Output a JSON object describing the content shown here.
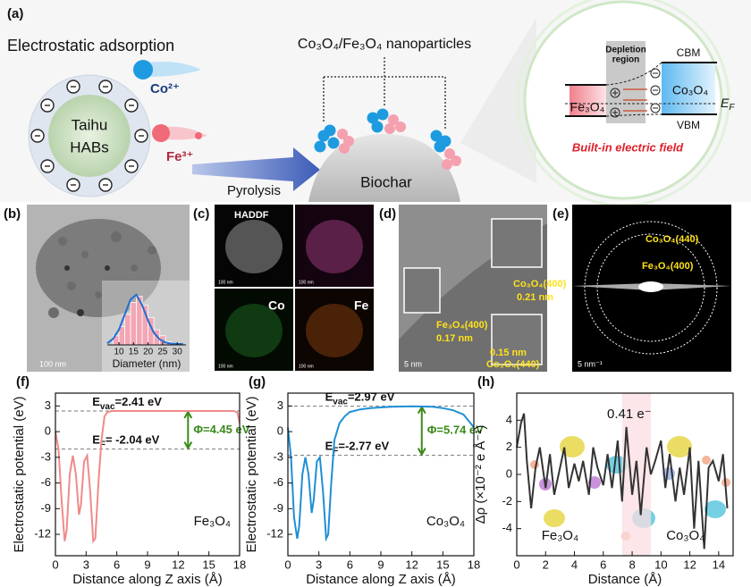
{
  "panel_a": {
    "label": "(a)",
    "adsorption_title": "Electrostatic adsorption",
    "cobalt_ion": "Co²⁺",
    "iron_ion": "Fe³⁺",
    "source": [
      "Taihu",
      "HABs"
    ],
    "nanoparticles": "Co₃O₄/Fe₃O₄ nanoparticles",
    "process": "Pyrolysis",
    "support": "Biochar",
    "band_diagram": {
      "depletion": [
        "Depletion",
        "region"
      ],
      "cbm": "CBM",
      "vbm": "VBM",
      "right_material": "Co₃O₄",
      "left_material": "Fe₃O₄",
      "fermi": {
        "parts": [
          "E",
          "F"
        ]
      },
      "caption": "Built-in electric field"
    }
  },
  "panel_b": {
    "label": "(b)",
    "scale_bar": "100 nm"
  },
  "panel_c": {
    "label": "(c)",
    "haadf": "HADDF",
    "cobalt": "Co",
    "iron": "Fe",
    "scale_bar": "100 nm"
  },
  "panel_d": {
    "label": "(d)",
    "co_plane": "Co₃O₄(400)",
    "co_spacing": "0.21 nm",
    "fe_plane": "Fe₃O₄(400)",
    "fe_spacing": "0.17 nm",
    "co440_spacing": "0.15 nm",
    "co440_plane": "Co₃O₄(440)",
    "scale_bar": "5 nm"
  },
  "panel_e": {
    "label": "(e)",
    "outer_ring": "Co₃O₄(440)",
    "inner_ring": "Fe₃O₄(400)",
    "scale_bar": "5 nm⁻¹"
  },
  "chart_data": [
    {
      "type": "histogram",
      "xlabel": "Diameter (nm)",
      "bins": [
        8,
        10,
        12,
        14,
        16,
        18,
        20,
        22,
        24,
        26,
        28
      ],
      "values": [
        3,
        6,
        10,
        14,
        16,
        13,
        9,
        5,
        3,
        1
      ],
      "color": "#f4a6b4",
      "xlim": [
        6,
        33
      ],
      "xticks": [
        10,
        15,
        20,
        25,
        30
      ],
      "ylim": [
        0,
        20
      ],
      "fit": {
        "color": "#1f6fd0",
        "x": [
          6,
          8,
          10,
          12,
          14,
          16,
          18,
          20,
          22,
          24,
          26,
          28,
          30,
          32
        ],
        "values": [
          0.5,
          2,
          5,
          10,
          15,
          16.5,
          13,
          8,
          4,
          1.8,
          0.8,
          0.4,
          0.3,
          0.3
        ]
      }
    },
    {
      "type": "line",
      "label": "(f)",
      "xlabel": "Distance along Z axis (Å)",
      "ylabel": "Electrostatic potential (eV)",
      "material": "Fe₃O₄",
      "color": "#f08a8a",
      "x": [
        0,
        0.3,
        0.6,
        0.9,
        1.1,
        1.4,
        1.7,
        2.0,
        2.3,
        2.5,
        2.8,
        3.1,
        3.4,
        3.7,
        3.9,
        4.2,
        4.5,
        4.8,
        5.1,
        5.5,
        6,
        8,
        10,
        12,
        14,
        16,
        17,
        17.5,
        17.8,
        18
      ],
      "values": [
        0,
        -2,
        -8,
        -12.8,
        -11.5,
        -5,
        -2.8,
        -5,
        -9.7,
        -8.5,
        -3.5,
        -2.8,
        -7,
        -12.8,
        -12.5,
        -6,
        -1,
        1.8,
        2.3,
        2.41,
        2.41,
        2.41,
        2.41,
        2.41,
        2.41,
        2.41,
        2.41,
        2.4,
        2.2,
        1.0
      ],
      "xlim": [
        0,
        18
      ],
      "xticks": [
        0,
        3,
        6,
        9,
        12,
        15,
        18
      ],
      "ylim": [
        -14.5,
        4.5
      ],
      "yticks": [
        3,
        0,
        -3,
        -6,
        -9,
        -12
      ],
      "levels": [
        {
          "value": 2.41,
          "parts": [
            "E",
            "vac",
            "=2.41 eV"
          ]
        },
        {
          "value": -2.04,
          "parts": [
            "E",
            "F",
            "= -2.04 eV"
          ]
        }
      ],
      "gap_label": "Φ=4.45 eV",
      "gap_color": "#3a8a1a"
    },
    {
      "type": "line",
      "label": "(g)",
      "xlabel": "Distance along Z axis (Å)",
      "ylabel": "Electrostatic potential (eV)",
      "material": "Co₃O₄",
      "color": "#1f8fd6",
      "x": [
        0,
        0.3,
        0.6,
        0.9,
        1.1,
        1.4,
        1.7,
        2.0,
        2.3,
        2.5,
        2.8,
        3.1,
        3.4,
        3.7,
        3.9,
        4.2,
        4.5,
        5,
        5.5,
        6,
        7,
        8,
        10,
        12,
        14,
        15,
        16,
        17,
        18
      ],
      "values": [
        0.5,
        -3,
        -10,
        -12.5,
        -11,
        -5,
        -3,
        -5,
        -9.5,
        -8,
        -3.5,
        -3,
        -7,
        -12.5,
        -12,
        -6,
        -1,
        1,
        1.8,
        2.3,
        2.6,
        2.75,
        2.9,
        2.97,
        2.9,
        2.75,
        2.5,
        2,
        0.5
      ],
      "xlim": [
        0,
        18
      ],
      "xticks": [
        0,
        3,
        6,
        9,
        12,
        15,
        18
      ],
      "ylim": [
        -14.5,
        4.5
      ],
      "yticks": [
        3,
        0,
        -3,
        -6,
        -9,
        -12
      ],
      "levels": [
        {
          "value": 2.97,
          "parts": [
            "E",
            "vac",
            "=2.97 eV"
          ]
        },
        {
          "value": -2.77,
          "parts": [
            "E",
            "F",
            "=-2.77 eV"
          ]
        }
      ],
      "gap_label": "Φ=5.74 eV",
      "gap_color": "#3a8a1a"
    },
    {
      "type": "line",
      "label": "(h)",
      "xlabel": "Distance (Å)",
      "ylabel": "Δρ (×10⁻² e Å⁻¹)",
      "charge_transfer": "0.41 e⁻",
      "left_material": "Fe₃O₄",
      "right_material": "Co₃O₄",
      "color": "#333333",
      "highlight": {
        "x": [
          7.3,
          9.3
        ],
        "color": "#fbdde2"
      },
      "x": [
        0,
        0.3,
        0.5,
        0.7,
        1,
        1.3,
        1.6,
        2,
        2.3,
        2.6,
        3,
        3.3,
        3.6,
        4,
        4.3,
        4.6,
        5,
        5.3,
        5.6,
        6,
        6.3,
        6.6,
        7,
        7.3,
        7.6,
        8,
        8.3,
        8.6,
        9,
        9.3,
        9.6,
        10,
        10.3,
        10.6,
        11,
        11.3,
        11.6,
        12,
        12.3,
        12.6,
        13,
        13.3,
        13.6,
        14,
        14.3,
        14.6
      ],
      "values": [
        2,
        3.8,
        4.5,
        1,
        -2.5,
        0.5,
        2,
        -1,
        1.5,
        -1.5,
        0.5,
        2,
        -1,
        0.8,
        -0.5,
        1,
        -1.5,
        2,
        0.5,
        -0.8,
        1.5,
        -1,
        2.5,
        -2,
        3.5,
        -1.5,
        1,
        -3,
        2,
        0,
        1,
        2.5,
        -1,
        1.5,
        -2,
        0.5,
        -1.5,
        2,
        -4,
        1,
        -5.5,
        0.5,
        1,
        -0.5,
        1.5,
        -2.5
      ],
      "xlim": [
        0,
        15
      ],
      "xticks": [
        0,
        2,
        4,
        6,
        8,
        10,
        12,
        14
      ],
      "ylim": [
        -6,
        6
      ],
      "yticks": [
        4,
        2,
        0,
        -2,
        -4
      ]
    }
  ]
}
